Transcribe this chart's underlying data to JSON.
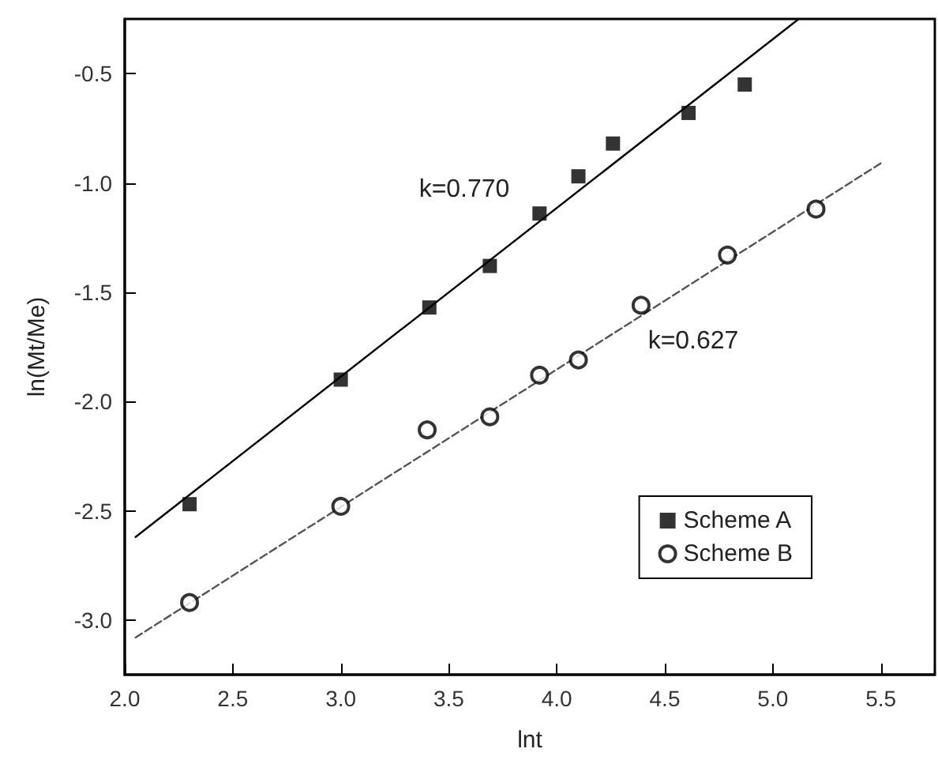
{
  "chart_data": {
    "type": "scatter",
    "xlabel": "lnt",
    "ylabel": "ln(Mt/Me)",
    "xlim": [
      2.0,
      5.75
    ],
    "xticks": [
      {
        "value": 2,
        "label": "2.0"
      },
      2.5,
      {
        "value": 3,
        "label": "3.0"
      },
      3.5,
      {
        "value": 4,
        "label": "4.0"
      },
      4.5,
      {
        "value": 5,
        "label": "5.0"
      },
      5.5
    ],
    "ylim": [
      -3.25,
      -0.25
    ],
    "yticks": [
      {
        "value": -3,
        "label": "-3.0"
      },
      -2.5,
      {
        "value": -2,
        "label": "-2.0"
      },
      -1.5,
      {
        "value": -1,
        "label": "-1.0"
      },
      -0.5
    ],
    "grid": false,
    "legend": "bottom right",
    "series": [
      {
        "name": "Scheme A",
        "color": "#000000",
        "marker": "square",
        "x": [
          2.3,
          3.0,
          3.41,
          3.69,
          3.92,
          4.1,
          4.26,
          4.61,
          4.87
        ],
        "values": [
          -2.47,
          -1.9,
          -1.57,
          -1.38,
          -1.14,
          -0.97,
          -0.82,
          -0.68,
          -0.55
        ]
      },
      {
        "name": "Scheme B",
        "color": "#000000",
        "marker": "circle",
        "x": [
          2.3,
          3.0,
          3.4,
          3.69,
          3.92,
          4.1,
          4.39,
          4.79,
          5.2
        ],
        "values": [
          -2.92,
          -2.48,
          -2.13,
          -2.07,
          -1.88,
          -1.81,
          -1.56,
          -1.33,
          -1.12
        ]
      },
      {
        "type": "line",
        "color": "#000000",
        "marker": "none",
        "line_style": "solid",
        "x": [
          2.05,
          5.12
        ],
        "values": [
          -2.62,
          -0.25
        ]
      },
      {
        "type": "line",
        "color": "#555555",
        "marker": "none",
        "line_style": "dashed",
        "x": [
          2.05,
          5.5
        ],
        "values": [
          -3.08,
          -0.91
        ]
      }
    ],
    "annotations": [
      "k=0.770",
      "k=0.627"
    ]
  }
}
